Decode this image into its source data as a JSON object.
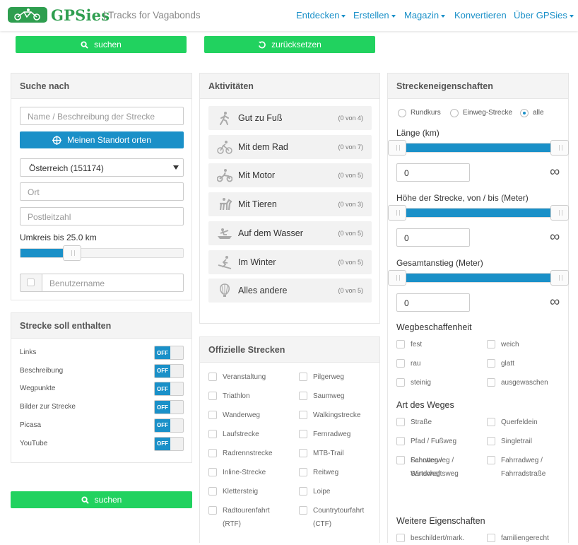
{
  "header": {
    "brand": "GPSies",
    "tagline": "| Tracks for Vagabonds",
    "menu": [
      "Entdecken",
      "Erstellen",
      "Magazin",
      "Konvertieren",
      "Über GPSies"
    ]
  },
  "buttons": {
    "search": "suchen",
    "reset": "zurücksetzen",
    "search_bottom": "suchen"
  },
  "search_panel": {
    "title": "Suche nach",
    "name_placeholder": "Name / Beschreibung der Strecke",
    "locate_button": "Meinen Standort orten",
    "country": "Österreich (151174)",
    "city_placeholder": "Ort",
    "zip_placeholder": "Postleitzahl",
    "radius_label": "Umkreis bis 25.0 km",
    "radius_value_km": 25.0,
    "user_placeholder": "Benutzername"
  },
  "contains_panel": {
    "title": "Strecke soll enthalten",
    "toggle_text": "OFF",
    "items": [
      "Links",
      "Beschreibung",
      "Wegpunkte",
      "Bilder zur Strecke",
      "Picasa",
      "YouTube"
    ]
  },
  "activities_panel": {
    "title": "Aktivitäten",
    "items": [
      {
        "name": "Gut zu Fuß",
        "count": "(0 von 4)",
        "icon": "walking-icon"
      },
      {
        "name": "Mit dem Rad",
        "count": "(0 von 7)",
        "icon": "bicycle-icon"
      },
      {
        "name": "Mit Motor",
        "count": "(0 von 5)",
        "icon": "motorcycle-icon"
      },
      {
        "name": "Mit Tieren",
        "count": "(0 von 3)",
        "icon": "horse-icon"
      },
      {
        "name": "Auf dem Wasser",
        "count": "(0 von 5)",
        "icon": "boat-icon"
      },
      {
        "name": "Im Winter",
        "count": "(0 von 5)",
        "icon": "skiing-icon"
      },
      {
        "name": "Alles andere",
        "count": "(0 von 5)",
        "icon": "balloon-icon"
      }
    ]
  },
  "official_panel": {
    "title": "Offizielle Strecken",
    "left": [
      "Veranstaltung",
      "Triathlon",
      "Wanderweg",
      "Laufstrecke",
      "Radrennstrecke",
      "Inline-Strecke",
      "Klettersteig",
      "Radtourenfahrt (RTF)"
    ],
    "right": [
      "Pilgerweg",
      "Saumweg",
      "Walkingstrecke",
      "Fernradweg",
      "MTB-Trail",
      "Reitweg",
      "Loipe",
      "Countrytourfahrt (CTF)"
    ]
  },
  "props_panel": {
    "title": "Streckeneigenschaften",
    "radios": [
      "Rundkurs",
      "Einweg-Strecke",
      "alle"
    ],
    "selected_radio": "alle",
    "length_label": "Länge (km)",
    "length_min": "0",
    "height_label": "Höhe der Strecke, von / bis (Meter)",
    "height_min": "0",
    "ascent_label": "Gesamtanstieg (Meter)",
    "ascent_min": "0",
    "infinity": "∞",
    "surface_title": "Wegbeschaffenheit",
    "surface": [
      "fest",
      "weich",
      "rau",
      "glatt",
      "steinig",
      "ausgewaschen"
    ],
    "waytype_title": "Art des Weges",
    "waytype": [
      "Straße",
      "Querfeldein",
      "Pfad / Fußweg",
      "Singletrail",
      "Fahrweg / Wirtschaftsweg",
      "Fahrradweg / Fahrradstraße",
      "Schotterweg / Sandweg"
    ],
    "more_title": "Weitere Eigenschaften",
    "more": [
      "beschildert/mark.",
      "familiengerecht"
    ]
  }
}
